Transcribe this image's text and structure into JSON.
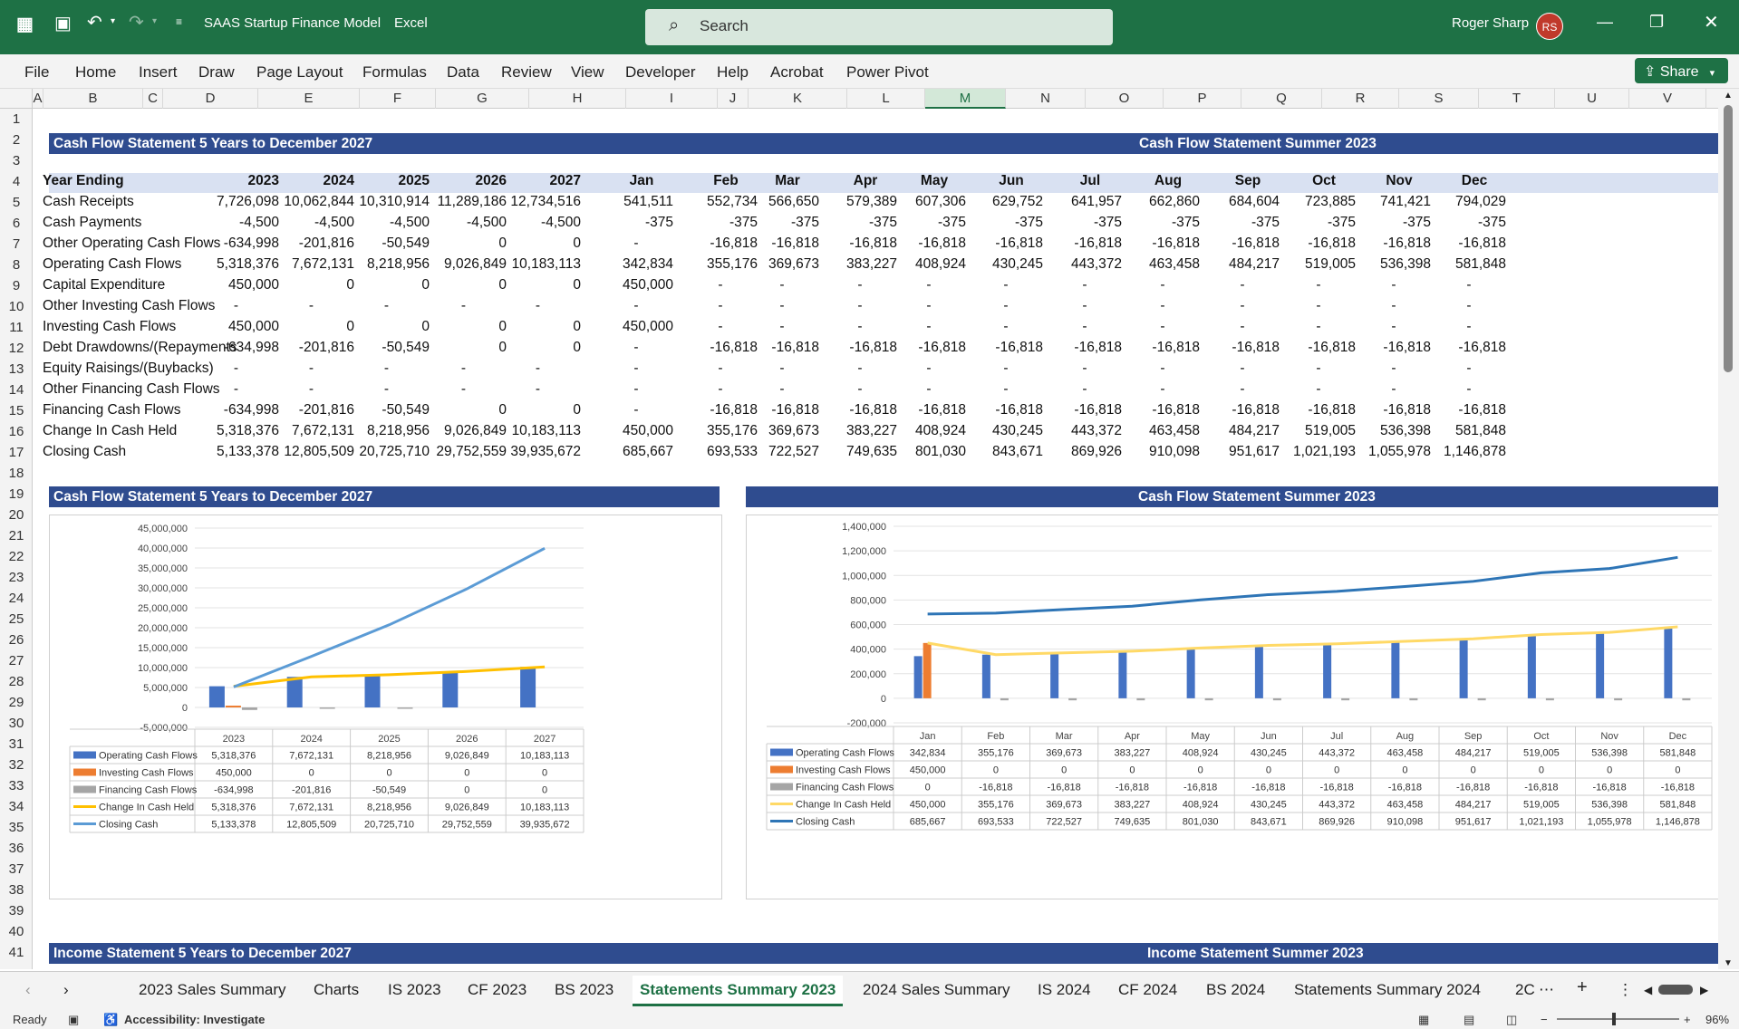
{
  "app": {
    "title": "SAAS Startup Finance Model",
    "app_name": "Excel",
    "search_placeholder": "Search",
    "user": "Roger Sharp",
    "initials": "RS"
  },
  "menu": [
    "File",
    "Home",
    "Insert",
    "Draw",
    "Page Layout",
    "Formulas",
    "Data",
    "Review",
    "View",
    "Developer",
    "Help",
    "Acrobat",
    "Power Pivot"
  ],
  "share_label": "Share",
  "columns": [
    "A",
    "B",
    "C",
    "D",
    "E",
    "F",
    "G",
    "H",
    "I",
    "J",
    "K",
    "L",
    "M",
    "N",
    "O",
    "P",
    "Q",
    "R",
    "S",
    "T",
    "U",
    "V"
  ],
  "selected_column": "M",
  "rows": [
    "1",
    "2",
    "3",
    "4",
    "5",
    "6",
    "7",
    "8",
    "9",
    "10",
    "11",
    "12",
    "13",
    "14",
    "15",
    "16",
    "17",
    "18",
    "19",
    "20",
    "21",
    "22",
    "23",
    "24",
    "25",
    "26",
    "27",
    "28",
    "29",
    "30",
    "31",
    "32",
    "33",
    "34",
    "35",
    "36",
    "37",
    "38",
    "39",
    "40",
    "41"
  ],
  "left_title": "Cash Flow Statement 5 Years to December 2027",
  "right_title": "Cash Flow Statement Summer 2023",
  "year_header": "Year Ending",
  "years": [
    "2023",
    "2024",
    "2025",
    "2026",
    "2027"
  ],
  "months": [
    "Jan",
    "Feb",
    "Mar",
    "Apr",
    "May",
    "Jun",
    "Jul",
    "Aug",
    "Sep",
    "Oct",
    "Nov",
    "Dec"
  ],
  "table": [
    {
      "label": "Cash Receipts",
      "y": [
        "7,726,098",
        "10,062,844",
        "10,310,914",
        "11,289,186",
        "12,734,516"
      ],
      "m": [
        "541,511",
        "552,734",
        "566,650",
        "579,389",
        "607,306",
        "629,752",
        "641,957",
        "662,860",
        "684,604",
        "723,885",
        "741,421",
        "794,029"
      ]
    },
    {
      "label": "Cash Payments",
      "y": [
        "-4,500",
        "-4,500",
        "-4,500",
        "-4,500",
        "-4,500"
      ],
      "m": [
        "-375",
        "-375",
        "-375",
        "-375",
        "-375",
        "-375",
        "-375",
        "-375",
        "-375",
        "-375",
        "-375",
        "-375"
      ]
    },
    {
      "label": "Other Operating Cash Flows",
      "y": [
        "-634,998",
        "-201,816",
        "-50,549",
        "0",
        "0"
      ],
      "m": [
        "-",
        "-16,818",
        "-16,818",
        "-16,818",
        "-16,818",
        "-16,818",
        "-16,818",
        "-16,818",
        "-16,818",
        "-16,818",
        "-16,818",
        "-16,818"
      ]
    },
    {
      "label": "Operating Cash Flows",
      "y": [
        "5,318,376",
        "7,672,131",
        "8,218,956",
        "9,026,849",
        "10,183,113"
      ],
      "m": [
        "342,834",
        "355,176",
        "369,673",
        "383,227",
        "408,924",
        "430,245",
        "443,372",
        "463,458",
        "484,217",
        "519,005",
        "536,398",
        "581,848"
      ]
    },
    {
      "label": "Capital Expenditure",
      "y": [
        "450,000",
        "0",
        "0",
        "0",
        "0"
      ],
      "m": [
        "450,000",
        "-",
        "-",
        "-",
        "-",
        "-",
        "-",
        "-",
        "-",
        "-",
        "-",
        "-"
      ]
    },
    {
      "label": "Other Investing Cash Flows",
      "y": [
        "-",
        "-",
        "-",
        "-",
        "-"
      ],
      "m": [
        "-",
        "-",
        "-",
        "-",
        "-",
        "-",
        "-",
        "-",
        "-",
        "-",
        "-",
        "-"
      ]
    },
    {
      "label": "Investing Cash Flows",
      "y": [
        "450,000",
        "0",
        "0",
        "0",
        "0"
      ],
      "m": [
        "450,000",
        "-",
        "-",
        "-",
        "-",
        "-",
        "-",
        "-",
        "-",
        "-",
        "-",
        "-"
      ]
    },
    {
      "label": "Debt Drawdowns/(Repayments",
      "y": [
        "-634,998",
        "-201,816",
        "-50,549",
        "0",
        "0"
      ],
      "m": [
        "-",
        "-16,818",
        "-16,818",
        "-16,818",
        "-16,818",
        "-16,818",
        "-16,818",
        "-16,818",
        "-16,818",
        "-16,818",
        "-16,818",
        "-16,818"
      ]
    },
    {
      "label": "Equity Raisings/(Buybacks)",
      "y": [
        "-",
        "-",
        "-",
        "-",
        "-"
      ],
      "m": [
        "-",
        "-",
        "-",
        "-",
        "-",
        "-",
        "-",
        "-",
        "-",
        "-",
        "-",
        "-"
      ]
    },
    {
      "label": "Other Financing Cash Flows",
      "y": [
        "-",
        "-",
        "-",
        "-",
        "-"
      ],
      "m": [
        "-",
        "-",
        "-",
        "-",
        "-",
        "-",
        "-",
        "-",
        "-",
        "-",
        "-",
        "-"
      ]
    },
    {
      "label": "Financing Cash Flows",
      "y": [
        "-634,998",
        "-201,816",
        "-50,549",
        "0",
        "0"
      ],
      "m": [
        "-",
        "-16,818",
        "-16,818",
        "-16,818",
        "-16,818",
        "-16,818",
        "-16,818",
        "-16,818",
        "-16,818",
        "-16,818",
        "-16,818",
        "-16,818"
      ]
    },
    {
      "label": "Change In Cash Held",
      "y": [
        "5,318,376",
        "7,672,131",
        "8,218,956",
        "9,026,849",
        "10,183,113"
      ],
      "m": [
        "450,000",
        "355,176",
        "369,673",
        "383,227",
        "408,924",
        "430,245",
        "443,372",
        "463,458",
        "484,217",
        "519,005",
        "536,398",
        "581,848"
      ]
    },
    {
      "label": "Closing Cash",
      "y": [
        "5,133,378",
        "12,805,509",
        "20,725,710",
        "29,752,559",
        "39,935,672"
      ],
      "m": [
        "685,667",
        "693,533",
        "722,527",
        "749,635",
        "801,030",
        "843,671",
        "869,926",
        "910,098",
        "951,617",
        "1,021,193",
        "1,055,978",
        "1,146,878"
      ]
    }
  ],
  "chart_left_title": "Cash Flow Statement 5 Years to December 2027",
  "chart_right_title": "Cash Flow Statement Summer 2023",
  "chart_data": [
    {
      "type": "bar",
      "categories": [
        "2023",
        "2024",
        "2025",
        "2026",
        "2027"
      ],
      "ylim": [
        -5000000,
        45000000
      ],
      "yticks": [
        "45,000,000",
        "40,000,000",
        "35,000,000",
        "30,000,000",
        "25,000,000",
        "20,000,000",
        "15,000,000",
        "10,000,000",
        "5,000,000",
        "0",
        "-5,000,000"
      ],
      "series": [
        {
          "name": "Operating Cash Flows",
          "kind": "bar",
          "color": "#4472c4",
          "values": [
            5318376,
            7672131,
            8218956,
            9026849,
            10183113
          ],
          "labels": [
            "5,318,376",
            "7,672,131",
            "8,218,956",
            "9,026,849",
            "10,183,113"
          ]
        },
        {
          "name": "Investing Cash Flows",
          "kind": "bar",
          "color": "#ed7d31",
          "values": [
            450000,
            0,
            0,
            0,
            0
          ],
          "labels": [
            "450,000",
            "0",
            "0",
            "0",
            "0"
          ]
        },
        {
          "name": "Financing Cash Flows",
          "kind": "bar",
          "color": "#a5a5a5",
          "values": [
            -634998,
            -201816,
            -50549,
            0,
            0
          ],
          "labels": [
            "-634,998",
            "-201,816",
            "-50,549",
            "0",
            "0"
          ]
        },
        {
          "name": "Change In Cash Held",
          "kind": "line",
          "color": "#ffc000",
          "values": [
            5318376,
            7672131,
            8218956,
            9026849,
            10183113
          ],
          "labels": [
            "5,318,376",
            "7,672,131",
            "8,218,956",
            "9,026,849",
            "10,183,113"
          ]
        },
        {
          "name": "Closing Cash",
          "kind": "line",
          "color": "#5b9bd5",
          "values": [
            5133378,
            12805509,
            20725710,
            29752559,
            39935672
          ],
          "labels": [
            "5,133,378",
            "12,805,509",
            "20,725,710",
            "29,752,559",
            "39,935,672"
          ]
        }
      ]
    },
    {
      "type": "bar",
      "categories": [
        "Jan",
        "Feb",
        "Mar",
        "Apr",
        "May",
        "Jun",
        "Jul",
        "Aug",
        "Sep",
        "Oct",
        "Nov",
        "Dec"
      ],
      "ylim": [
        -200000,
        1400000
      ],
      "yticks": [
        "1,400,000",
        "1,200,000",
        "1,000,000",
        "800,000",
        "600,000",
        "400,000",
        "200,000",
        "0",
        "-200,000"
      ],
      "series": [
        {
          "name": "Operating Cash Flows",
          "kind": "bar",
          "color": "#4472c4",
          "values": [
            342834,
            355176,
            369673,
            383227,
            408924,
            430245,
            443372,
            463458,
            484217,
            519005,
            536398,
            581848
          ],
          "labels": [
            "342,834",
            "355,176",
            "369,673",
            "383,227",
            "408,924",
            "430,245",
            "443,372",
            "463,458",
            "484,217",
            "519,005",
            "536,398",
            "581,848"
          ]
        },
        {
          "name": "Investing Cash Flows",
          "kind": "bar",
          "color": "#ed7d31",
          "values": [
            450000,
            0,
            0,
            0,
            0,
            0,
            0,
            0,
            0,
            0,
            0,
            0
          ],
          "labels": [
            "450,000",
            "0",
            "0",
            "0",
            "0",
            "0",
            "0",
            "0",
            "0",
            "0",
            "0",
            "0"
          ]
        },
        {
          "name": "Financing Cash Flows",
          "kind": "bar",
          "color": "#a5a5a5",
          "values": [
            0,
            -16818,
            -16818,
            -16818,
            -16818,
            -16818,
            -16818,
            -16818,
            -16818,
            -16818,
            -16818,
            -16818
          ],
          "labels": [
            "0",
            "-16,818",
            "-16,818",
            "-16,818",
            "-16,818",
            "-16,818",
            "-16,818",
            "-16,818",
            "-16,818",
            "-16,818",
            "-16,818",
            "-16,818"
          ]
        },
        {
          "name": "Change In Cash Held",
          "kind": "line",
          "color": "#ffd966",
          "values": [
            450000,
            355176,
            369673,
            383227,
            408924,
            430245,
            443372,
            463458,
            484217,
            519005,
            536398,
            581848
          ],
          "labels": [
            "450,000",
            "355,176",
            "369,673",
            "383,227",
            "408,924",
            "430,245",
            "443,372",
            "463,458",
            "484,217",
            "519,005",
            "536,398",
            "581,848"
          ]
        },
        {
          "name": "Closing Cash",
          "kind": "line",
          "color": "#2e75b6",
          "values": [
            685667,
            693533,
            722527,
            749635,
            801030,
            843671,
            869926,
            910098,
            951617,
            1021193,
            1055978,
            1146878
          ],
          "labels": [
            "685,667",
            "693,533",
            "722,527",
            "749,635",
            "801,030",
            "843,671",
            "869,926",
            "910,098",
            "951,617",
            "1,021,193",
            "1,055,978",
            "1,146,878"
          ]
        }
      ]
    }
  ],
  "income_left": "Income Statement 5 Years to December 2027",
  "income_right": "Income Statement Summer 2023",
  "sheet_tabs": [
    "2023 Sales Summary",
    "Charts",
    "IS 2023",
    "CF 2023",
    "BS 2023",
    "Statements Summary 2023",
    "2024 Sales Summary",
    "IS 2024",
    "CF 2024",
    "BS 2024",
    "Statements Summary 2024",
    "2C"
  ],
  "active_tab": "Statements Summary 2023",
  "status": {
    "ready": "Ready",
    "accessibility": "Accessibility: Investigate",
    "zoom": "96%"
  }
}
